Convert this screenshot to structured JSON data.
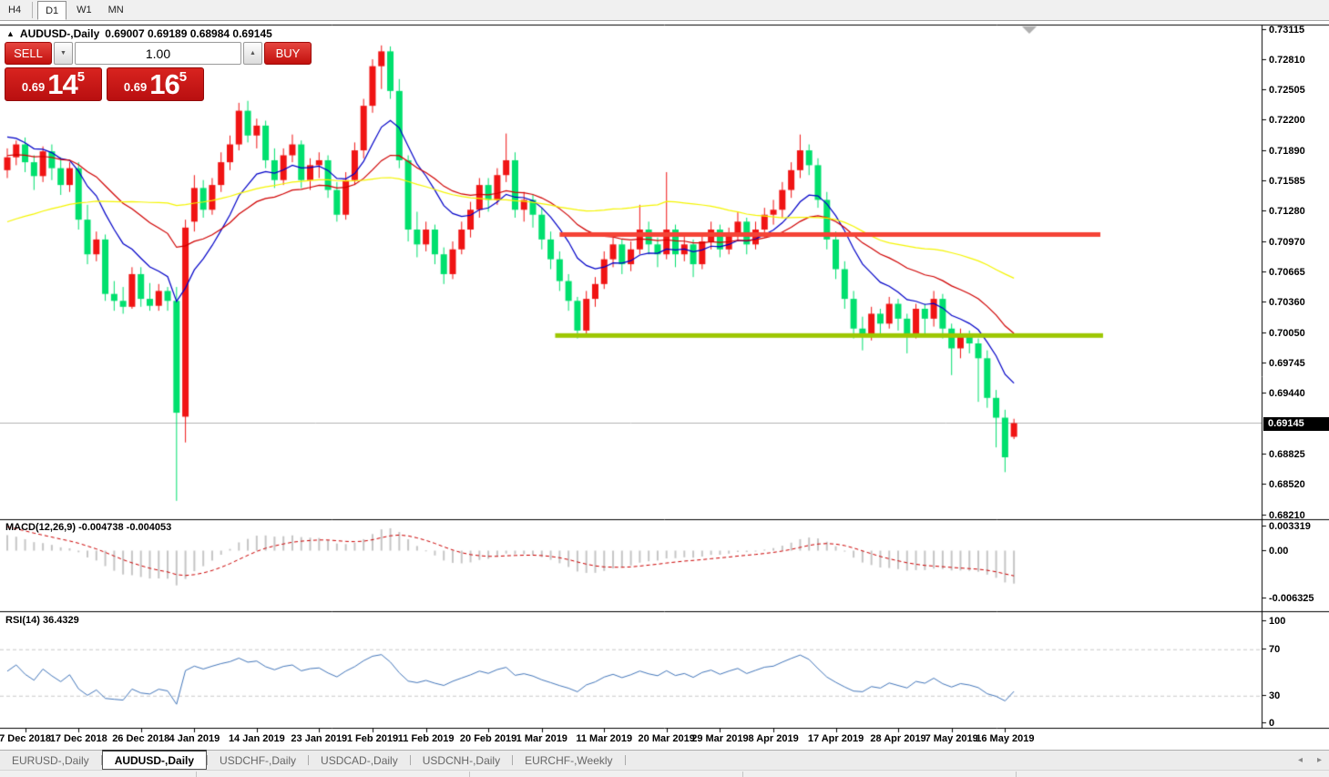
{
  "toolbar": {
    "periods": [
      {
        "label": "H4",
        "active": false
      },
      {
        "label": "D1",
        "active": true
      },
      {
        "label": "W1",
        "active": false
      },
      {
        "label": "MN",
        "active": false
      }
    ]
  },
  "chart": {
    "collapse_icon": "▲",
    "symbol_period": "AUDUSD-,Daily",
    "ohlc_text": "0.69007 0.69189 0.68984 0.69145"
  },
  "trade_panel": {
    "sell_label": "SELL",
    "buy_label": "BUY",
    "volume": "1.00",
    "down_icon": "▼",
    "up_icon": "▲",
    "bid": {
      "small": "0.69",
      "big": "14",
      "sup": "5"
    },
    "ask": {
      "small": "0.69",
      "big": "16",
      "sup": "5"
    }
  },
  "macd_panel": {
    "label": "MACD(12,26,9) -0.004738 -0.004053",
    "ticks": [
      {
        "label": "0.003319",
        "value": 0.003319
      },
      {
        "label": "0.00",
        "value": 0
      },
      {
        "label": "-0.006325",
        "value": -0.006325
      }
    ]
  },
  "rsi_panel": {
    "label": "RSI(14) 36.4329",
    "ticks": [
      {
        "label": "100",
        "value": 100
      },
      {
        "label": "70",
        "value": 70
      },
      {
        "label": "30",
        "value": 30
      },
      {
        "label": "0",
        "value": 0
      }
    ]
  },
  "bottom_tabs": {
    "tabs": [
      {
        "label": "EURUSD-,Daily",
        "active": false
      },
      {
        "label": "AUDUSD-,Daily",
        "active": true
      },
      {
        "label": "USDCHF-,Daily",
        "active": false
      },
      {
        "label": "USDCAD-,Daily",
        "active": false
      },
      {
        "label": "USDCNH-,Daily",
        "active": false
      },
      {
        "label": "EURCHF-,Weekly",
        "active": false
      }
    ],
    "scroll_left_icon": "◂",
    "scroll_right_icon": "▸"
  },
  "chart_data": {
    "type": "candlestick",
    "title": "AUDUSD-,Daily",
    "ohlc_display": {
      "open": 0.69007,
      "high": 0.69189,
      "low": 0.68984,
      "close": 0.69145
    },
    "current_price": {
      "label": "0.69145",
      "value": 0.69145
    },
    "y_range": [
      0.6817,
      0.7316
    ],
    "grid": false,
    "y_ticks": [
      {
        "label": "0.73115",
        "value": 0.73115
      },
      {
        "label": "0.72810",
        "value": 0.7281
      },
      {
        "label": "0.72505",
        "value": 0.72505
      },
      {
        "label": "0.72200",
        "value": 0.722
      },
      {
        "label": "0.71890",
        "value": 0.7189
      },
      {
        "label": "0.71585",
        "value": 0.71585
      },
      {
        "label": "0.71280",
        "value": 0.7128
      },
      {
        "label": "0.70970",
        "value": 0.7097
      },
      {
        "label": "0.70665",
        "value": 0.70665
      },
      {
        "label": "0.70360",
        "value": 0.7036
      },
      {
        "label": "0.70050",
        "value": 0.7005
      },
      {
        "label": "0.69745",
        "value": 0.69745
      },
      {
        "label": "0.69440",
        "value": 0.6944
      },
      {
        "label": "0.68825",
        "value": 0.68825
      },
      {
        "label": "0.68520",
        "value": 0.6852
      },
      {
        "label": "0.68210",
        "value": 0.6821
      }
    ],
    "x_ticks": [
      {
        "label": "7 Dec 2018",
        "index": 2
      },
      {
        "label": "17 Dec 2018",
        "index": 8
      },
      {
        "label": "26 Dec 2018",
        "index": 15
      },
      {
        "label": "4 Jan 2019",
        "index": 21
      },
      {
        "label": "14 Jan 2019",
        "index": 28
      },
      {
        "label": "23 Jan 2019",
        "index": 35
      },
      {
        "label": "1 Feb 2019",
        "index": 41
      },
      {
        "label": "11 Feb 2019",
        "index": 47
      },
      {
        "label": "20 Feb 2019",
        "index": 54
      },
      {
        "label": "1 Mar 2019",
        "index": 60
      },
      {
        "label": "11 Mar 2019",
        "index": 67
      },
      {
        "label": "20 Mar 2019",
        "index": 74
      },
      {
        "label": "29 Mar 2019",
        "index": 80
      },
      {
        "label": "8 Apr 2019",
        "index": 86
      },
      {
        "label": "17 Apr 2019",
        "index": 93
      },
      {
        "label": "28 Apr 2019",
        "index": 100
      },
      {
        "label": "7 May 2019",
        "index": 106
      },
      {
        "label": "16 May 2019",
        "index": 112
      }
    ],
    "candles": [
      [
        0.717,
        0.7192,
        0.7162,
        0.7183
      ],
      [
        0.7183,
        0.72,
        0.7175,
        0.7196
      ],
      [
        0.7196,
        0.7203,
        0.7168,
        0.7178
      ],
      [
        0.7178,
        0.7185,
        0.715,
        0.7164
      ],
      [
        0.7164,
        0.7194,
        0.7158,
        0.7189
      ],
      [
        0.7189,
        0.7196,
        0.716,
        0.7172
      ],
      [
        0.7172,
        0.7183,
        0.7145,
        0.7155
      ],
      [
        0.7155,
        0.7178,
        0.7148,
        0.7172
      ],
      [
        0.7172,
        0.7178,
        0.711,
        0.712
      ],
      [
        0.712,
        0.7135,
        0.7075,
        0.7085
      ],
      [
        0.7085,
        0.7108,
        0.7078,
        0.71
      ],
      [
        0.71,
        0.7105,
        0.7038,
        0.7045
      ],
      [
        0.7045,
        0.7058,
        0.7028,
        0.7038
      ],
      [
        0.7038,
        0.7052,
        0.7025,
        0.7032
      ],
      [
        0.7032,
        0.7072,
        0.703,
        0.7065
      ],
      [
        0.7065,
        0.7072,
        0.7032,
        0.704
      ],
      [
        0.704,
        0.7056,
        0.7028,
        0.7033
      ],
      [
        0.7033,
        0.7055,
        0.7028,
        0.7048
      ],
      [
        0.7048,
        0.7052,
        0.7028,
        0.7038
      ],
      [
        0.7038,
        0.7052,
        0.6836,
        0.6925
      ],
      [
        0.6921,
        0.712,
        0.6895,
        0.7112
      ],
      [
        0.7118,
        0.7165,
        0.7108,
        0.7152
      ],
      [
        0.7152,
        0.716,
        0.7122,
        0.713
      ],
      [
        0.713,
        0.7162,
        0.7125,
        0.7155
      ],
      [
        0.7155,
        0.7188,
        0.7148,
        0.7178
      ],
      [
        0.7178,
        0.7205,
        0.717,
        0.7196
      ],
      [
        0.7196,
        0.7238,
        0.719,
        0.723
      ],
      [
        0.723,
        0.724,
        0.7198,
        0.7205
      ],
      [
        0.7205,
        0.7222,
        0.7192,
        0.7215
      ],
      [
        0.7215,
        0.722,
        0.7172,
        0.718
      ],
      [
        0.718,
        0.7192,
        0.7152,
        0.716
      ],
      [
        0.716,
        0.7192,
        0.7155,
        0.7185
      ],
      [
        0.7185,
        0.7206,
        0.7178,
        0.7196
      ],
      [
        0.7196,
        0.72,
        0.7152,
        0.716
      ],
      [
        0.716,
        0.7182,
        0.715,
        0.7175
      ],
      [
        0.7175,
        0.7188,
        0.7162,
        0.718
      ],
      [
        0.718,
        0.7185,
        0.7142,
        0.715
      ],
      [
        0.715,
        0.7158,
        0.7118,
        0.7125
      ],
      [
        0.7125,
        0.7168,
        0.712,
        0.716
      ],
      [
        0.716,
        0.7198,
        0.7155,
        0.719
      ],
      [
        0.719,
        0.7242,
        0.7182,
        0.7235
      ],
      [
        0.7235,
        0.7282,
        0.7228,
        0.7275
      ],
      [
        0.7275,
        0.7296,
        0.7252,
        0.729
      ],
      [
        0.729,
        0.7295,
        0.7242,
        0.725
      ],
      [
        0.725,
        0.7262,
        0.7172,
        0.718
      ],
      [
        0.718,
        0.7185,
        0.7098,
        0.711
      ],
      [
        0.711,
        0.7128,
        0.7082,
        0.7095
      ],
      [
        0.7095,
        0.7118,
        0.7088,
        0.711
      ],
      [
        0.711,
        0.7115,
        0.7075,
        0.7085
      ],
      [
        0.7085,
        0.7092,
        0.7055,
        0.7065
      ],
      [
        0.7065,
        0.7098,
        0.706,
        0.709
      ],
      [
        0.709,
        0.7118,
        0.7085,
        0.711
      ],
      [
        0.711,
        0.7138,
        0.7102,
        0.713
      ],
      [
        0.713,
        0.7162,
        0.7122,
        0.7155
      ],
      [
        0.7155,
        0.7162,
        0.7128,
        0.714
      ],
      [
        0.714,
        0.7172,
        0.7135,
        0.7165
      ],
      [
        0.7165,
        0.7207,
        0.7158,
        0.718
      ],
      [
        0.718,
        0.7188,
        0.7122,
        0.713
      ],
      [
        0.713,
        0.7148,
        0.7118,
        0.714
      ],
      [
        0.714,
        0.7145,
        0.7112,
        0.7125
      ],
      [
        0.7125,
        0.7132,
        0.709,
        0.71
      ],
      [
        0.71,
        0.7108,
        0.707,
        0.708
      ],
      [
        0.708,
        0.7088,
        0.7048,
        0.7058
      ],
      [
        0.7058,
        0.7065,
        0.7028,
        0.7038
      ],
      [
        0.7038,
        0.7042,
        0.7,
        0.7008
      ],
      [
        0.7008,
        0.7048,
        0.7003,
        0.704
      ],
      [
        0.704,
        0.7062,
        0.7032,
        0.7055
      ],
      [
        0.7055,
        0.7088,
        0.705,
        0.708
      ],
      [
        0.708,
        0.7102,
        0.7072,
        0.7095
      ],
      [
        0.7095,
        0.71,
        0.7065,
        0.7075
      ],
      [
        0.7075,
        0.7098,
        0.7068,
        0.709
      ],
      [
        0.709,
        0.7135,
        0.7085,
        0.711
      ],
      [
        0.711,
        0.7118,
        0.7085,
        0.7095
      ],
      [
        0.7095,
        0.7102,
        0.7072,
        0.7085
      ],
      [
        0.7085,
        0.7168,
        0.708,
        0.711
      ],
      [
        0.711,
        0.7115,
        0.7072,
        0.7085
      ],
      [
        0.7085,
        0.7105,
        0.7078,
        0.7095
      ],
      [
        0.7095,
        0.71,
        0.7062,
        0.7075
      ],
      [
        0.7075,
        0.7105,
        0.707,
        0.7098
      ],
      [
        0.7098,
        0.7118,
        0.709,
        0.711
      ],
      [
        0.711,
        0.7115,
        0.7082,
        0.709
      ],
      [
        0.709,
        0.7112,
        0.7085,
        0.7105
      ],
      [
        0.7105,
        0.7128,
        0.7098,
        0.7118
      ],
      [
        0.7118,
        0.7122,
        0.7085,
        0.7095
      ],
      [
        0.7095,
        0.7118,
        0.709,
        0.711
      ],
      [
        0.711,
        0.7132,
        0.7102,
        0.7125
      ],
      [
        0.7125,
        0.714,
        0.7115,
        0.713
      ],
      [
        0.713,
        0.7158,
        0.7122,
        0.715
      ],
      [
        0.715,
        0.7178,
        0.7142,
        0.717
      ],
      [
        0.717,
        0.7206,
        0.7162,
        0.719
      ],
      [
        0.719,
        0.7196,
        0.7165,
        0.7175
      ],
      [
        0.7175,
        0.7182,
        0.7132,
        0.714
      ],
      [
        0.714,
        0.7148,
        0.709,
        0.71
      ],
      [
        0.71,
        0.7108,
        0.706,
        0.707
      ],
      [
        0.707,
        0.7078,
        0.703,
        0.704
      ],
      [
        0.704,
        0.7048,
        0.7,
        0.701
      ],
      [
        0.701,
        0.7022,
        0.6988,
        0.7005
      ],
      [
        0.7005,
        0.7032,
        0.6998,
        0.7025
      ],
      [
        0.7025,
        0.703,
        0.7005,
        0.7015
      ],
      [
        0.7015,
        0.7042,
        0.701,
        0.7035
      ],
      [
        0.7035,
        0.704,
        0.7008,
        0.702
      ],
      [
        0.702,
        0.7025,
        0.6985,
        0.7005
      ],
      [
        0.7005,
        0.7035,
        0.7,
        0.703
      ],
      [
        0.703,
        0.7035,
        0.7005,
        0.702
      ],
      [
        0.702,
        0.7048,
        0.7012,
        0.704
      ],
      [
        0.704,
        0.7045,
        0.7,
        0.701
      ],
      [
        0.701,
        0.7015,
        0.6963,
        0.699
      ],
      [
        0.699,
        0.701,
        0.698,
        0.7003
      ],
      [
        0.7003,
        0.7008,
        0.6985,
        0.6995
      ],
      [
        0.6995,
        0.7,
        0.6936,
        0.698
      ],
      [
        0.698,
        0.6988,
        0.693,
        0.694
      ],
      [
        0.694,
        0.6948,
        0.689,
        0.692
      ],
      [
        0.692,
        0.6928,
        0.6865,
        0.688
      ],
      [
        0.69007,
        0.69189,
        0.68984,
        0.69145
      ]
    ],
    "annotations": {
      "resistance": {
        "price": 0.7105,
        "from_index": 62,
        "to_index": 122.7,
        "color": "#f54336",
        "thickness": 5
      },
      "support": {
        "price": 0.7003,
        "from_index": 61.5,
        "to_index": 123,
        "color": "#9dc702",
        "thickness": 5
      }
    },
    "moving_averages": [
      {
        "type": "ema",
        "period": 10,
        "color": "#0000c8"
      },
      {
        "type": "ema",
        "period": 25,
        "color": "#d00000"
      },
      {
        "type": "sma",
        "period": 55,
        "color": "#f5f500"
      }
    ],
    "indicators": {
      "macd": {
        "fast": 12,
        "slow": 26,
        "signal_period": 9,
        "value": -0.004738,
        "signal_value": -0.004053,
        "range": [
          -0.006325,
          0.003319
        ],
        "hist_color": "#c6c6c6",
        "signal_color": "#cc0000"
      },
      "rsi": {
        "period": 14,
        "value": 36.4329,
        "color": "#4477bb",
        "levels": [
          70,
          30
        ],
        "range": [
          0,
          100
        ]
      }
    },
    "colors": {
      "bull": "#f01414",
      "bear": "#00e06e",
      "current_price_line": "#b4b4b4",
      "level_dash": "#c8c8c8"
    }
  }
}
